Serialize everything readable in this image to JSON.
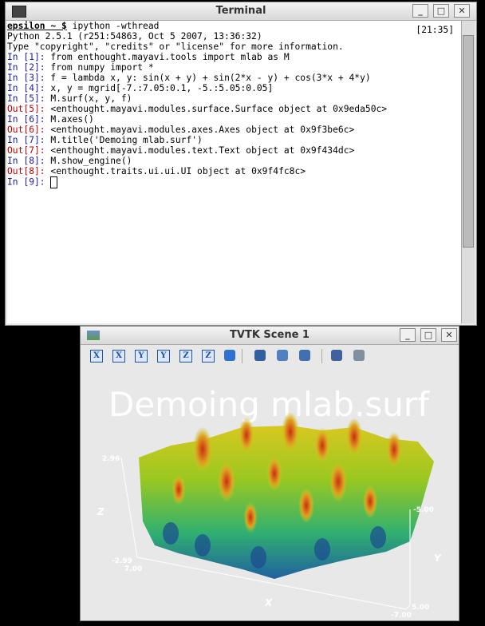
{
  "terminal": {
    "title": "Terminal",
    "prompt_user": "epsilon ~ $",
    "command": "ipython -wthread",
    "clock": "[21:35]",
    "banner": [
      "Python 2.5.1 (r251:54863, Oct  5 2007, 13:36:32)",
      "Type \"copyright\", \"credits\" or \"license\" for more information."
    ],
    "cells": [
      {
        "in_prompt": "In [1]:",
        "input": "from enthought.mayavi.tools import mlab as M"
      },
      {
        "in_prompt": "In [2]:",
        "input": "from numpy import *"
      },
      {
        "in_prompt": "In [3]:",
        "input": "f = lambda x, y: sin(x + y) + sin(2*x - y) + cos(3*x + 4*y)"
      },
      {
        "in_prompt": "In [4]:",
        "input": "x, y = mgrid[-7.:7.05:0.1, -5.:5.05:0.05]"
      },
      {
        "in_prompt": "In [5]:",
        "input": "M.surf(x, y, f)",
        "out_prompt": "Out[5]:",
        "output": "<enthought.mayavi.modules.surface.Surface object at 0x9eda50c>"
      },
      {
        "in_prompt": "In [6]:",
        "input": "M.axes()",
        "out_prompt": "Out[6]:",
        "output": "<enthought.mayavi.modules.axes.Axes object at 0x9f3be6c>"
      },
      {
        "in_prompt": "In [7]:",
        "input": "M.title('Demoing mlab.surf')",
        "out_prompt": "Out[7]:",
        "output": "<enthought.mayavi.modules.text.Text object at 0x9f434dc>"
      },
      {
        "in_prompt": "In [8]:",
        "input": "M.show_engine()",
        "out_prompt": "Out[8]:",
        "output": "<enthought.traits.ui.ui.UI object at 0x9f4fc8c>"
      }
    ],
    "last_prompt": "In [9]:"
  },
  "scene": {
    "title": "TVTK Scene 1",
    "toolbar_view_labels": [
      "X",
      "X",
      "Y",
      "Y",
      "Z",
      "Z"
    ],
    "plot_title": "Demoing mlab.surf",
    "axes": {
      "z_label": "Z",
      "y_label": "Y",
      "x_label": "X",
      "z_max": "2.96",
      "z_min": "-2.99",
      "x_max": "7.00",
      "x_min": "-7.00",
      "y_min": "-5.00",
      "y_max": "5.00"
    }
  }
}
